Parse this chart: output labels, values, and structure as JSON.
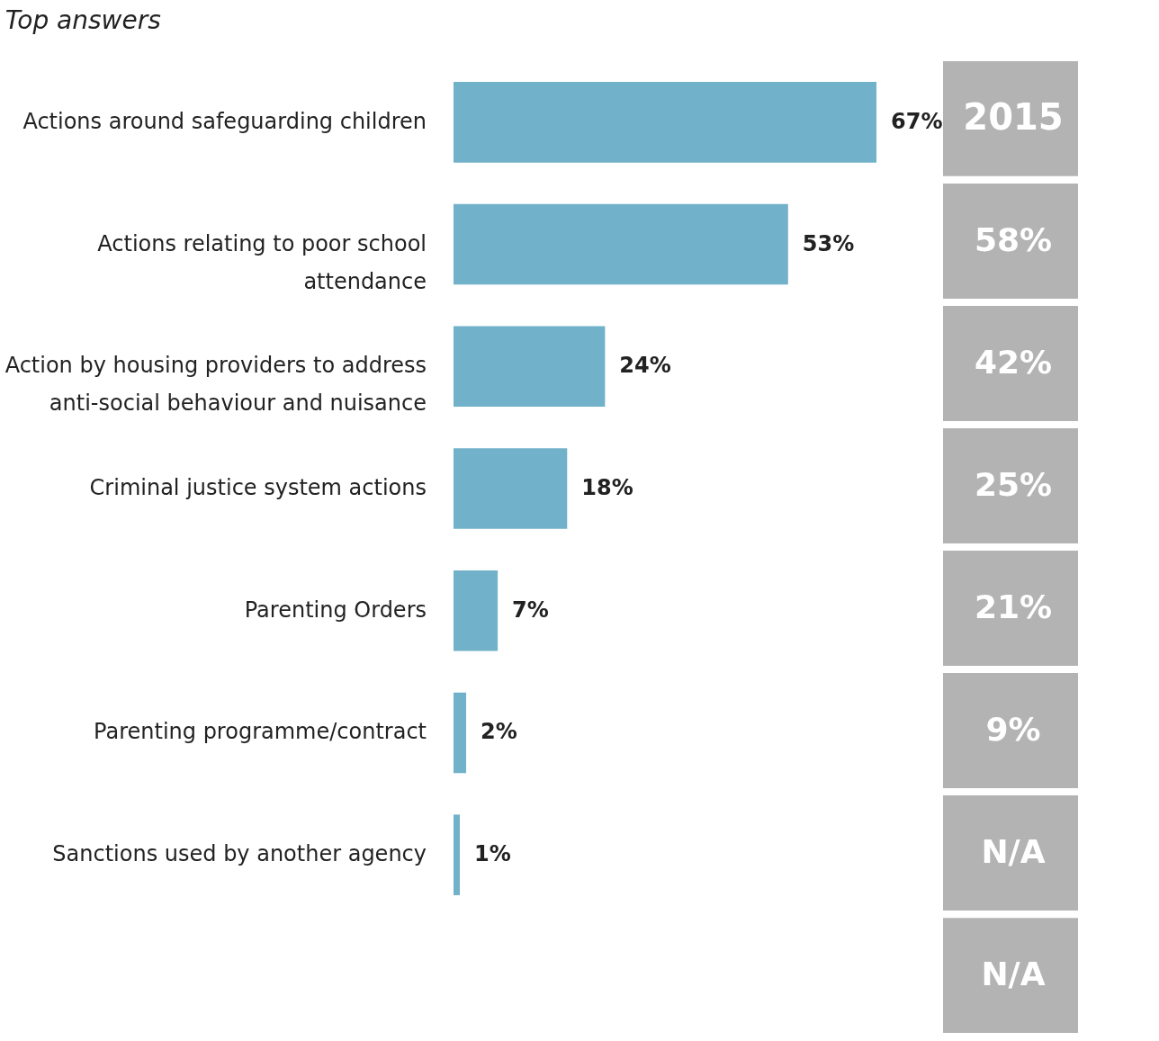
{
  "chart_data": [
    {
      "type": "bar",
      "orientation": "horizontal",
      "title": "Top answers",
      "categories": [
        "Actions around safeguarding children",
        "Actions relating to poor school attendance",
        "Action by housing providers to address anti-social behaviour and nuisance",
        "Criminal justice system actions",
        "Parenting Orders",
        "Parenting programme/contract",
        "Sanctions used by another agency"
      ],
      "values": [
        67,
        53,
        24,
        18,
        7,
        2,
        1
      ],
      "color": "#71b1c9",
      "data_labels": true,
      "value_labels": [
        "67%",
        "53%",
        "24%",
        "18%",
        "7%",
        "2%",
        "1%"
      ]
    },
    {
      "type": "other",
      "title": "2015",
      "annotations": [
        "58%",
        "42%",
        "25%",
        "21%",
        "9%",
        "N/A",
        "N/A"
      ]
    }
  ]
}
